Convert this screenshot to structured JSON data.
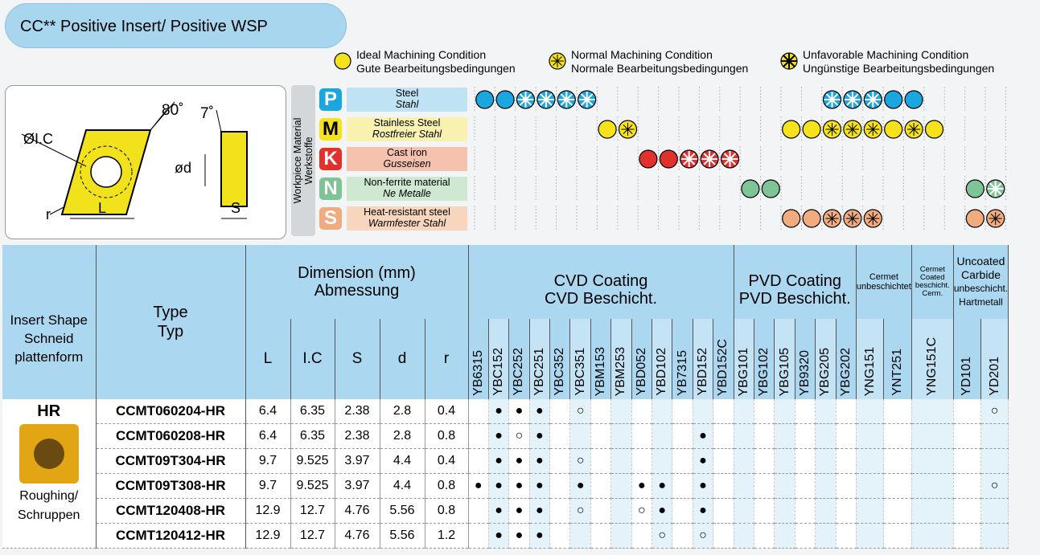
{
  "title": "CC** Positive Insert/ Positive WSP",
  "legend": [
    {
      "en": "Ideal Machining Condition",
      "de": "Gute Bearbeitungsbedingungen",
      "icon": "solid-dot-icon"
    },
    {
      "en": "Normal Machining Condition",
      "de": "Normale Bearbeitungsbedingungen",
      "icon": "star-dot-icon"
    },
    {
      "en": "Unfavorable Machining Condition",
      "de": "Ungünstige Bearbeitungsbedingungen",
      "icon": "burst-dot-icon"
    }
  ],
  "diagram": {
    "angle_80": "80˚",
    "angle_7": "7˚",
    "ic": "ØI.C",
    "d": "ød",
    "r": "r",
    "L": "L",
    "S": "S"
  },
  "workpiece_label_en": "Workpiece Material",
  "workpiece_label_de": "Werkstoffe",
  "materials": [
    {
      "letter": "P",
      "en": "Steel",
      "de": "Stahl",
      "color": "#1aa7e0",
      "bg": "#bfe3f5",
      "dot": "#1aa7e0",
      "marks": {
        "0": "I",
        "1": "I",
        "2": "U",
        "3": "U",
        "4": "U",
        "5": "U",
        "17": "U",
        "18": "U",
        "19": "U",
        "20": "I",
        "21": "I"
      }
    },
    {
      "letter": "M",
      "en": "Stainless Steel",
      "de": "Rostfreier Stahl",
      "color": "#f5e21a",
      "bg": "#f8f1b0",
      "dot": "#f5e21a",
      "marks": {
        "6": "I",
        "7": "N",
        "15": "I",
        "16": "I",
        "17": "N",
        "18": "N",
        "19": "N",
        "20": "I",
        "21": "N",
        "22": "I"
      }
    },
    {
      "letter": "K",
      "en": "Cast iron",
      "de": "Gusseisen",
      "color": "#e2302c",
      "bg": "#f5c2ad",
      "dot": "#e2302c",
      "marks": {
        "8": "I",
        "9": "I",
        "10": "U",
        "11": "U",
        "12": "U"
      }
    },
    {
      "letter": "N",
      "en": "Non-ferrite material",
      "de": "Ne Metalle",
      "color": "#7fc496",
      "bg": "#cfe8d2",
      "dot": "#7fc496",
      "marks": {
        "13": "I",
        "14": "I",
        "24": "I",
        "25": "U"
      }
    },
    {
      "letter": "S",
      "en": "Heat-resistant steel",
      "de": "Warmfester Stahl",
      "color": "#f0ab7e",
      "bg": "#f8d6bd",
      "dot": "#f0ab7e",
      "marks": {
        "15": "I",
        "16": "I",
        "17": "N",
        "18": "N",
        "19": "N",
        "24": "I",
        "25": "N"
      }
    }
  ],
  "table": {
    "h_shape": [
      "Insert Shape",
      "Schneid",
      "plattenform"
    ],
    "h_type": [
      "Type",
      "Typ"
    ],
    "h_dim": [
      "Dimension (mm)",
      "Abmessung"
    ],
    "h_cvd": [
      "CVD Coating",
      "CVD Beschicht."
    ],
    "h_pvd": [
      "PVD Coating",
      "PVD Beschicht."
    ],
    "h_cermet": [
      "Cermet",
      "unbeschichtet"
    ],
    "h_cermet_coated": [
      "Cermet",
      "Coated",
      "beschicht. Cerm."
    ],
    "h_uncoated": [
      "Uncoated",
      "Carbide",
      "unbeschicht.",
      "Hartmetall"
    ],
    "dim_cols": [
      "L",
      "I.C",
      "S",
      "d",
      "r"
    ],
    "grades": [
      "YB6315",
      "YBC152",
      "YBC252",
      "YBC251",
      "YBC352",
      "YBC351",
      "YBM153",
      "YBM253",
      "YBD052",
      "YBD102",
      "YB7315",
      "YBD152",
      "YBD152C",
      "YBG101",
      "YBG102",
      "YBG105",
      "YB9320",
      "YBG205",
      "YBG202",
      "YNG151",
      "YNT251",
      "YNG151C",
      "YD101",
      "YD201"
    ],
    "shape_code": "HR",
    "shape_caption": [
      "Roughing/",
      "Schruppen"
    ],
    "rows": [
      {
        "type": "CCMT060204-HR",
        "L": "6.4",
        "IC": "6.35",
        "S": "2.38",
        "d": "2.8",
        "r": "0.4",
        "marks": {
          "1": "●",
          "2": "●",
          "3": "●",
          "5": "○",
          "23": "○"
        }
      },
      {
        "type": "CCMT060208-HR",
        "L": "6.4",
        "IC": "6.35",
        "S": "2.38",
        "d": "2.8",
        "r": "0.8",
        "marks": {
          "1": "●",
          "2": "○",
          "3": "●",
          "11": "●"
        }
      },
      {
        "type": "CCMT09T304-HR",
        "L": "9.7",
        "IC": "9.525",
        "S": "3.97",
        "d": "4.4",
        "r": "0.4",
        "marks": {
          "1": "●",
          "2": "●",
          "3": "●",
          "5": "○",
          "11": "●"
        }
      },
      {
        "type": "CCMT09T308-HR",
        "L": "9.7",
        "IC": "9.525",
        "S": "3.97",
        "d": "4.4",
        "r": "0.8",
        "marks": {
          "0": "●",
          "1": "●",
          "2": "●",
          "3": "●",
          "5": "●",
          "8": "●",
          "9": "●",
          "11": "●",
          "23": "○"
        }
      },
      {
        "type": "CCMT120408-HR",
        "L": "12.9",
        "IC": "12.7",
        "S": "4.76",
        "d": "5.56",
        "r": "0.8",
        "marks": {
          "1": "●",
          "2": "●",
          "3": "●",
          "5": "○",
          "8": "○",
          "9": "●",
          "11": "●"
        }
      },
      {
        "type": "CCMT120412-HR",
        "L": "12.9",
        "IC": "12.7",
        "S": "4.76",
        "d": "5.56",
        "r": "1.2",
        "marks": {
          "1": "●",
          "2": "●",
          "3": "●",
          "9": "○",
          "11": "○"
        }
      }
    ]
  }
}
